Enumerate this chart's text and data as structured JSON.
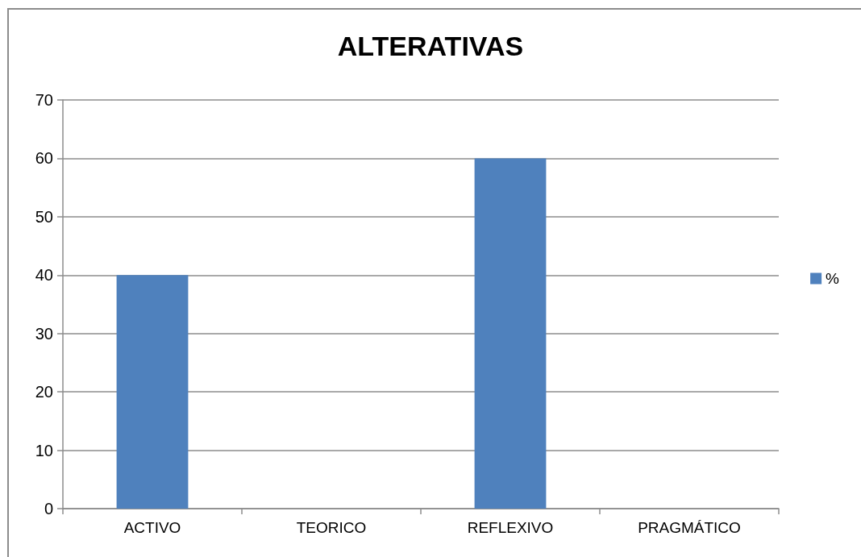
{
  "chart_data": {
    "type": "bar",
    "title": "ALTERATIVAS",
    "categories": [
      "ACTIVO",
      "TEORICO",
      "REFLEXIVO",
      "PRAGMÁTICO"
    ],
    "series": [
      {
        "name": "%",
        "color": "#4f81bd",
        "values": [
          40,
          0,
          60,
          0
        ]
      }
    ],
    "ylim": [
      0,
      70
    ],
    "yticks": [
      0,
      10,
      20,
      30,
      40,
      50,
      60,
      70
    ],
    "grid": "y",
    "legend": "right"
  }
}
